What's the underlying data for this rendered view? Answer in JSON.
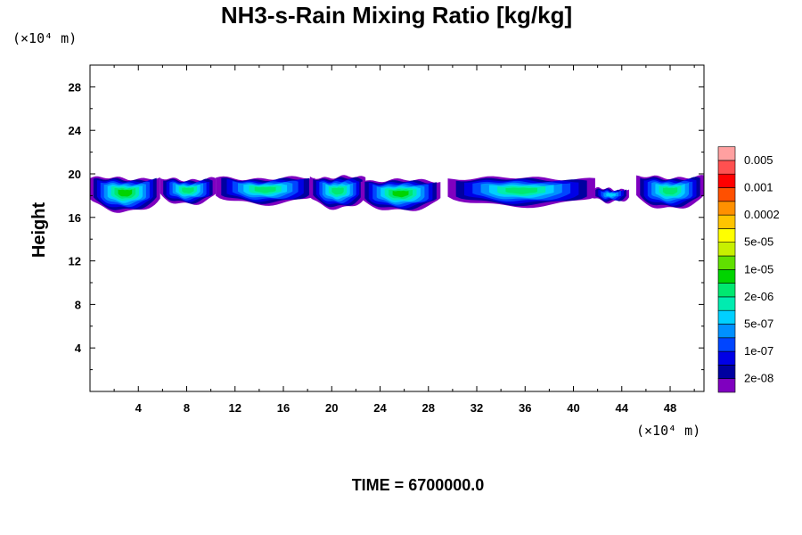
{
  "chart_data": {
    "type": "heatmap",
    "title": "NH3-s-Rain Mixing Ratio [kg/kg]",
    "xlabel": "",
    "ylabel": "Height",
    "x_unit_text": "(×10⁴ m)",
    "y_unit_text": "(×10⁴ m)",
    "xlim": [
      0,
      50.8
    ],
    "ylim": [
      0,
      30
    ],
    "x_ticks": [
      4,
      8,
      12,
      16,
      20,
      24,
      28,
      32,
      36,
      40,
      44,
      48
    ],
    "y_ticks": [
      4,
      8,
      12,
      16,
      20,
      24,
      28
    ],
    "time_label": "TIME = 6700000.0",
    "colorbar": {
      "colors": [
        "#7f00bf",
        "#0000a0",
        "#0000e6",
        "#0045ff",
        "#0090ff",
        "#00d0ff",
        "#00ecb0",
        "#00e870",
        "#00d400",
        "#60e000",
        "#c8f000",
        "#ffff00",
        "#ffc400",
        "#ff9000",
        "#ff5000",
        "#ff0000",
        "#ff5050",
        "#ffa0a0"
      ],
      "labels": [
        "2e-08",
        "1e-07",
        "5e-07",
        "2e-06",
        "1e-05",
        "5e-05",
        "0.0002",
        "0.001",
        "0.005"
      ]
    },
    "cloud_layer": {
      "note": "Rain-mixing-ratio cells concentrated between ~16.5 and ~20 (x10^4 m) height",
      "cells": [
        {
          "x0": 0.0,
          "x1": 5.8,
          "ytop": 19.6,
          "ybot": 16.5,
          "peak": 8
        },
        {
          "x0": 5.8,
          "x1": 10.4,
          "ytop": 19.5,
          "ybot": 17.2,
          "peak": 7
        },
        {
          "x0": 10.4,
          "x1": 18.6,
          "ytop": 19.6,
          "ybot": 17.2,
          "peak": 7
        },
        {
          "x0": 18.2,
          "x1": 22.8,
          "ytop": 19.7,
          "ybot": 16.8,
          "peak": 7
        },
        {
          "x0": 22.4,
          "x1": 29.0,
          "ytop": 19.4,
          "ybot": 16.6,
          "peak": 8
        },
        {
          "x0": 29.6,
          "x1": 41.8,
          "ytop": 19.6,
          "ybot": 17.0,
          "peak": 7
        },
        {
          "x0": 41.6,
          "x1": 44.6,
          "ytop": 18.6,
          "ybot": 17.4,
          "peak": 5
        },
        {
          "x0": 45.2,
          "x1": 50.8,
          "ytop": 19.7,
          "ybot": 16.8,
          "peak": 7
        }
      ]
    }
  }
}
